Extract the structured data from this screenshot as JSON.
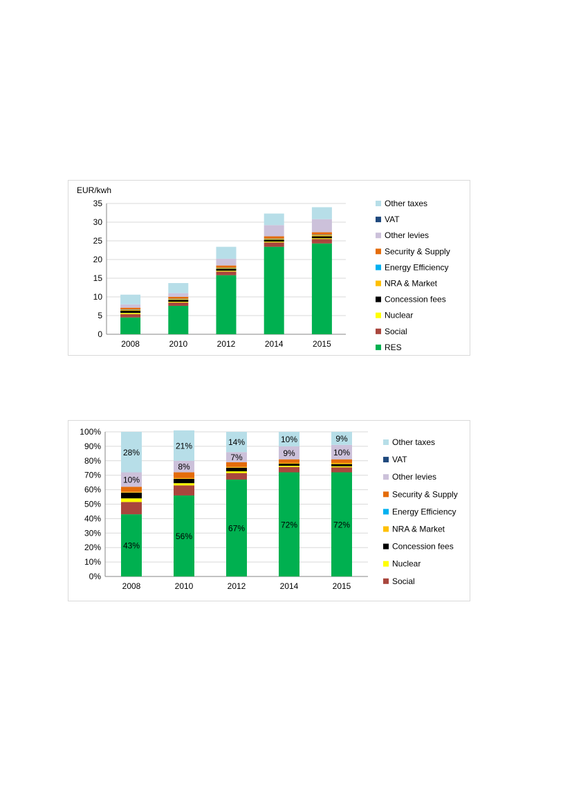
{
  "chart_data": [
    {
      "type": "bar",
      "stacked": true,
      "ylabel": "EUR/kwh",
      "ylim": [
        0,
        35
      ],
      "yticks": [
        "0",
        "5",
        "10",
        "15",
        "20",
        "25",
        "30",
        "35"
      ],
      "categories": [
        "2008",
        "2010",
        "2012",
        "2014",
        "2015"
      ],
      "grid": true,
      "legend_position": "right",
      "series": [
        {
          "name": "RES",
          "color": "#00b050",
          "values": [
            4.5,
            7.6,
            15.8,
            23.4,
            24.3
          ]
        },
        {
          "name": "Social",
          "color": "#a9463d",
          "values": [
            0.9,
            0.9,
            1.0,
            1.2,
            1.2
          ]
        },
        {
          "name": "Nuclear",
          "color": "#ffff00",
          "values": [
            0.3,
            0.2,
            0.2,
            0.2,
            0.2
          ]
        },
        {
          "name": "Concession fees",
          "color": "#000000",
          "values": [
            0.6,
            0.5,
            0.5,
            0.5,
            0.5
          ]
        },
        {
          "name": "NRA & Market",
          "color": "#ffc000",
          "values": [
            0.2,
            0.2,
            0.2,
            0.2,
            0.3
          ]
        },
        {
          "name": "Energy Efficiency",
          "color": "#00b0f0",
          "values": [
            0.1,
            0.1,
            0.1,
            0.1,
            0.1
          ]
        },
        {
          "name": "Security & Supply",
          "color": "#e46c0a",
          "values": [
            0.5,
            0.5,
            0.6,
            0.6,
            0.7
          ]
        },
        {
          "name": "Other levies",
          "color": "#ccc1da",
          "values": [
            0.9,
            1.0,
            1.8,
            3.0,
            3.5
          ]
        },
        {
          "name": "VAT",
          "color": "#1f497d",
          "values": [
            0,
            0,
            0,
            0,
            0
          ]
        },
        {
          "name": "Other taxes",
          "color": "#b7dee8",
          "values": [
            2.6,
            2.7,
            3.2,
            3.1,
            3.2
          ]
        }
      ]
    },
    {
      "type": "bar",
      "stacked": true,
      "percent": true,
      "ylim": [
        0,
        100
      ],
      "yticks": [
        "0%",
        "10%",
        "20%",
        "30%",
        "40%",
        "50%",
        "60%",
        "70%",
        "80%",
        "90%",
        "100%"
      ],
      "categories": [
        "2008",
        "2010",
        "2012",
        "2014",
        "2015"
      ],
      "grid": true,
      "legend_position": "right",
      "series": [
        {
          "name": "RES",
          "color": "#00b050",
          "values": [
            43,
            56,
            67,
            72,
            72
          ],
          "labels": [
            "43%",
            "56%",
            "67%",
            "72%",
            "72%"
          ],
          "in_legend": false
        },
        {
          "name": "Social",
          "color": "#a9463d",
          "values": [
            8.5,
            7,
            4.5,
            3.7,
            3.5
          ],
          "labels": [
            "",
            "",
            "",
            "",
            ""
          ]
        },
        {
          "name": "Nuclear",
          "color": "#ffff00",
          "values": [
            2.5,
            1.5,
            1.2,
            0.8,
            0.7
          ],
          "labels": [
            "",
            "",
            "",
            "",
            ""
          ]
        },
        {
          "name": "Concession fees",
          "color": "#000000",
          "values": [
            4,
            3,
            2.5,
            1.5,
            1.5
          ],
          "labels": [
            "",
            "",
            "",
            "",
            ""
          ]
        },
        {
          "name": "NRA & Market",
          "color": "#ffc000",
          "values": [
            0.5,
            0.5,
            0.5,
            0.5,
            0.8
          ],
          "labels": [
            "",
            "",
            "",
            "",
            ""
          ]
        },
        {
          "name": "Energy Efficiency",
          "color": "#00b0f0",
          "values": [
            0,
            0,
            0,
            0,
            0
          ],
          "labels": [
            "",
            "",
            "",
            "",
            ""
          ]
        },
        {
          "name": "Security & Supply",
          "color": "#e46c0a",
          "values": [
            3.5,
            4,
            3.3,
            2.5,
            2.5
          ],
          "labels": [
            "",
            "",
            "",
            "",
            ""
          ]
        },
        {
          "name": "Other levies",
          "color": "#ccc1da",
          "values": [
            10,
            8,
            7,
            9,
            10
          ],
          "labels": [
            "10%",
            "8%",
            "7%",
            "9%",
            "10%"
          ]
        },
        {
          "name": "VAT",
          "color": "#1f497d",
          "values": [
            0,
            0,
            0,
            0,
            0
          ],
          "labels": [
            "",
            "",
            "",
            "",
            ""
          ]
        },
        {
          "name": "Other taxes",
          "color": "#b7dee8",
          "values": [
            28,
            21,
            14,
            10,
            9
          ],
          "labels": [
            "28%",
            "21%",
            "14%",
            "10%",
            "9%"
          ]
        }
      ]
    }
  ]
}
